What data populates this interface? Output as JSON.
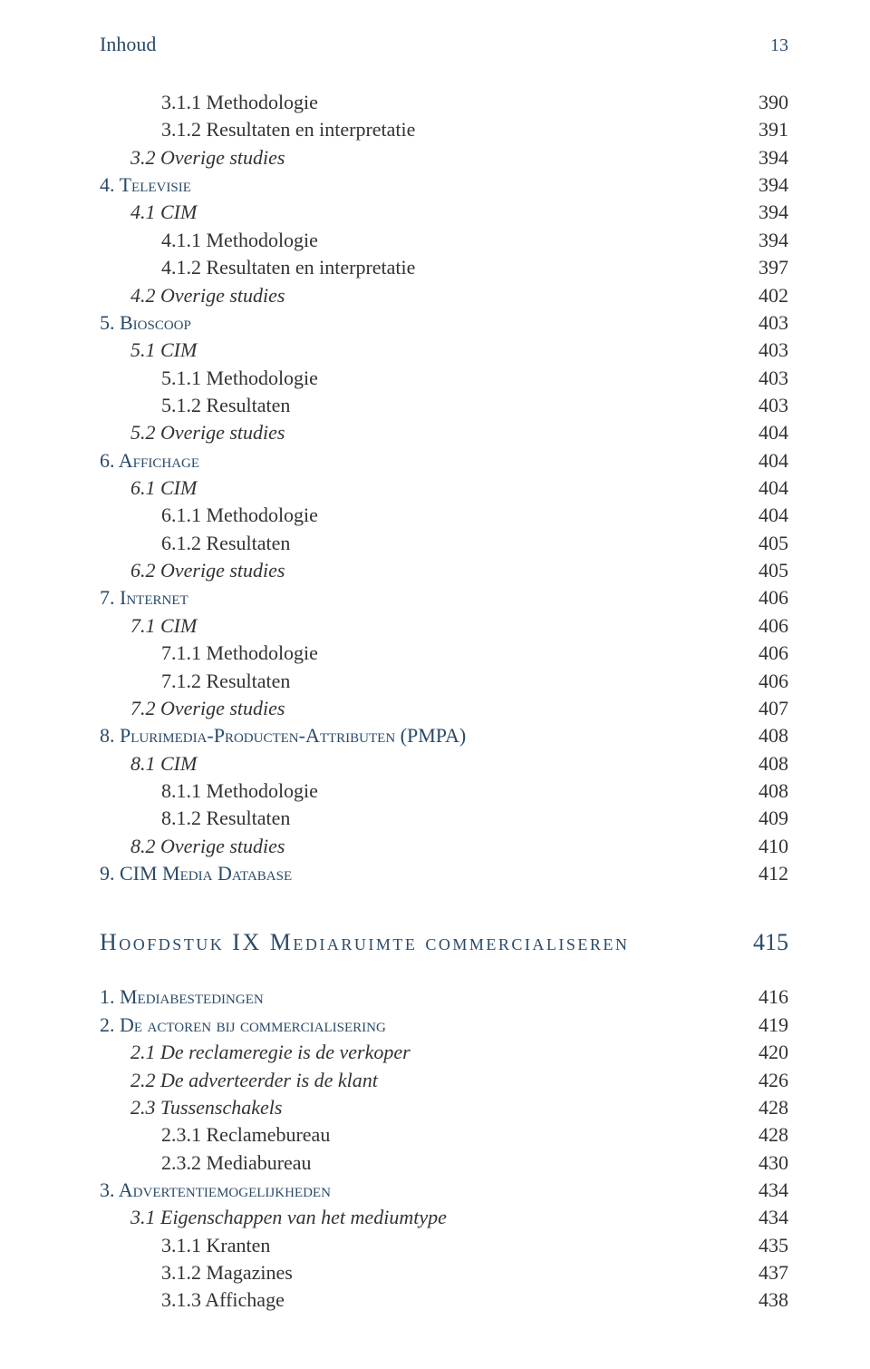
{
  "colors": {
    "heading": "#2a4a68",
    "body": "#333333",
    "background": "#ffffff"
  },
  "typography": {
    "body_fontsize_pt": 16,
    "chapter_fontsize_pt": 19,
    "line_height": 1.38,
    "font_family": "Georgia, serif"
  },
  "header": {
    "title": "Inhoud",
    "pagenum": "13"
  },
  "toc": [
    {
      "indent": 2,
      "style": "plain",
      "label": "3.1.1 Methodologie",
      "page": "390"
    },
    {
      "indent": 2,
      "style": "plain",
      "label": "3.1.2 Resultaten en interpretatie",
      "page": "391"
    },
    {
      "indent": 1,
      "style": "italic",
      "label": "3.2 Overige studies",
      "page": "394"
    },
    {
      "indent": 0,
      "style": "sc",
      "label": "4. Televisie",
      "page": "394"
    },
    {
      "indent": 1,
      "style": "italic",
      "label": "4.1 CIM",
      "page": "394"
    },
    {
      "indent": 2,
      "style": "plain",
      "label": "4.1.1 Methodologie",
      "page": "394"
    },
    {
      "indent": 2,
      "style": "plain",
      "label": "4.1.2 Resultaten en interpretatie",
      "page": "397"
    },
    {
      "indent": 1,
      "style": "italic",
      "label": "4.2 Overige studies",
      "page": "402"
    },
    {
      "indent": 0,
      "style": "sc",
      "label": "5. Bioscoop",
      "page": "403"
    },
    {
      "indent": 1,
      "style": "italic",
      "label": "5.1 CIM",
      "page": "403"
    },
    {
      "indent": 2,
      "style": "plain",
      "label": "5.1.1 Methodologie",
      "page": "403"
    },
    {
      "indent": 2,
      "style": "plain",
      "label": "5.1.2 Resultaten",
      "page": "403"
    },
    {
      "indent": 1,
      "style": "italic",
      "label": "5.2 Overige studies",
      "page": "404"
    },
    {
      "indent": 0,
      "style": "sc",
      "label": "6. Affichage",
      "page": "404"
    },
    {
      "indent": 1,
      "style": "italic",
      "label": "6.1 CIM",
      "page": "404"
    },
    {
      "indent": 2,
      "style": "plain",
      "label": "6.1.1 Methodologie",
      "page": "404"
    },
    {
      "indent": 2,
      "style": "plain",
      "label": "6.1.2 Resultaten",
      "page": "405"
    },
    {
      "indent": 1,
      "style": "italic",
      "label": "6.2 Overige studies",
      "page": "405"
    },
    {
      "indent": 0,
      "style": "sc",
      "label": "7. Internet",
      "page": "406"
    },
    {
      "indent": 1,
      "style": "italic",
      "label": "7.1 CIM",
      "page": "406"
    },
    {
      "indent": 2,
      "style": "plain",
      "label": "7.1.1 Methodologie",
      "page": "406"
    },
    {
      "indent": 2,
      "style": "plain",
      "label": "7.1.2 Resultaten",
      "page": "406"
    },
    {
      "indent": 1,
      "style": "italic",
      "label": "7.2 Overige studies",
      "page": "407"
    },
    {
      "indent": 0,
      "style": "sc",
      "label": "8. Plurimedia-Producten-Attributen (PMPA)",
      "page": "408"
    },
    {
      "indent": 1,
      "style": "italic",
      "label": "8.1 CIM",
      "page": "408"
    },
    {
      "indent": 2,
      "style": "plain",
      "label": "8.1.1 Methodologie",
      "page": "408"
    },
    {
      "indent": 2,
      "style": "plain",
      "label": "8.1.2 Resultaten",
      "page": "409"
    },
    {
      "indent": 1,
      "style": "italic",
      "label": "8.2 Overige studies",
      "page": "410"
    },
    {
      "indent": 0,
      "style": "sc",
      "label": "9. CIM Media Database",
      "page": "412"
    }
  ],
  "chapter": {
    "label": "Hoofdstuk IX Mediaruimte commercialiseren",
    "page": "415"
  },
  "toc2": [
    {
      "indent": 0,
      "style": "sc",
      "label": "1. Mediabestedingen",
      "page": "416"
    },
    {
      "indent": 0,
      "style": "sc",
      "label": "2. De actoren bij commercialisering",
      "page": "419"
    },
    {
      "indent": 1,
      "style": "italic",
      "label": "2.1 De reclameregie is de verkoper",
      "page": "420"
    },
    {
      "indent": 1,
      "style": "italic",
      "label": "2.2 De adverteerder is de klant",
      "page": "426"
    },
    {
      "indent": 1,
      "style": "italic",
      "label": "2.3 Tussenschakels",
      "page": "428"
    },
    {
      "indent": 2,
      "style": "plain",
      "label": "2.3.1 Reclamebureau",
      "page": "428"
    },
    {
      "indent": 2,
      "style": "plain",
      "label": "2.3.2 Mediabureau",
      "page": "430"
    },
    {
      "indent": 0,
      "style": "sc",
      "label": "3. Advertentiemogelijkheden",
      "page": "434"
    },
    {
      "indent": 1,
      "style": "italic",
      "label": "3.1 Eigenschappen van het mediumtype",
      "page": "434"
    },
    {
      "indent": 2,
      "style": "plain",
      "label": "3.1.1 Kranten",
      "page": "435"
    },
    {
      "indent": 2,
      "style": "plain",
      "label": "3.1.2 Magazines",
      "page": "437"
    },
    {
      "indent": 2,
      "style": "plain",
      "label": "3.1.3 Affichage",
      "page": "438"
    }
  ]
}
